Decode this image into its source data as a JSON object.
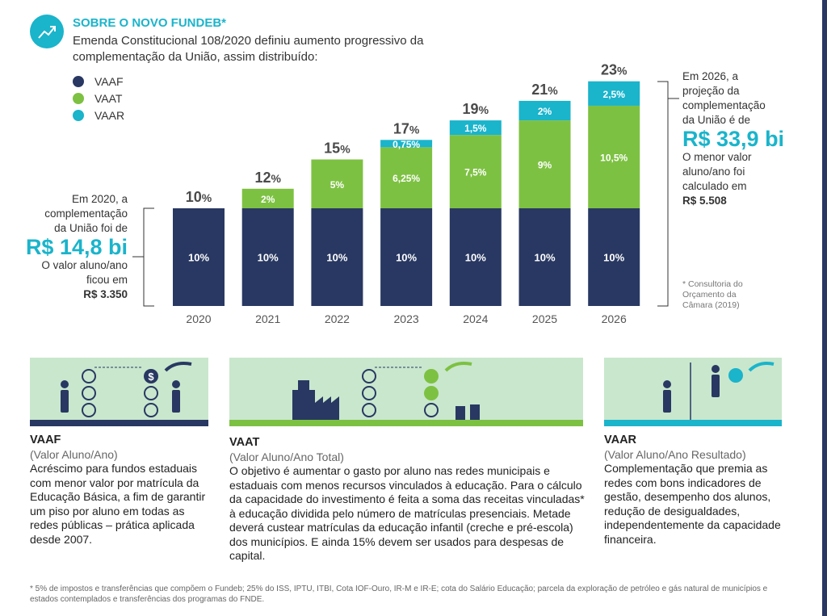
{
  "header": {
    "title": "SOBRE O NOVO FUNDEB*",
    "subtitle": "Emenda Constitucional 108/2020 definiu aumento progressivo da complementação da União, assim distribuído:",
    "icon": "trending-up-icon"
  },
  "colors": {
    "VAAF": "#283862",
    "VAAT": "#7dc142",
    "VAAR": "#1ab4cb"
  },
  "chart_data": {
    "type": "bar",
    "stacked": true,
    "categories": [
      "2020",
      "2021",
      "2022",
      "2023",
      "2024",
      "2025",
      "2026"
    ],
    "series": [
      {
        "name": "VAAF",
        "values": [
          10,
          10,
          10,
          10,
          10,
          10,
          10
        ],
        "labels": [
          "10%",
          "10%",
          "10%",
          "10%",
          "10%",
          "10%",
          "10%"
        ]
      },
      {
        "name": "VAAT",
        "values": [
          0,
          2,
          5,
          6.25,
          7.5,
          9,
          10.5
        ],
        "labels": [
          "",
          "2%",
          "5%",
          "6,25%",
          "7,5%",
          "9%",
          "10,5%"
        ]
      },
      {
        "name": "VAAR",
        "values": [
          0,
          0,
          0,
          0.75,
          1.5,
          2,
          2.5
        ],
        "labels": [
          "",
          "",
          "",
          "0,75%",
          "1,5%",
          "2%",
          "2,5%"
        ]
      }
    ],
    "totals": [
      "10",
      "12",
      "15",
      "17",
      "19",
      "21",
      "23"
    ],
    "total_suffix": "%",
    "legend": "top-left",
    "grid": false
  },
  "left_note": {
    "line1": "Em 2020, a",
    "line2": "complementação",
    "line3": "da União foi de",
    "amount": "R$ 14,8 bi",
    "line4": "O valor aluno/ano",
    "line5": "ficou em",
    "value": "R$ 3.350"
  },
  "right_note": {
    "line1": "Em 2026, a",
    "line2": "projeção da",
    "line3": "complementação",
    "line4": "da União é de",
    "amount": "R$ 33,9 bi",
    "line5": "O menor valor",
    "line6": "aluno/ano foi",
    "line7": "calculado em",
    "value": "R$ 5.508",
    "source": "* Consultoria do Orçamento da Câmara (2019)"
  },
  "sections": [
    {
      "title": "VAAF",
      "subtitle": "(Valor Aluno/Ano)",
      "text": "Acréscimo para fundos estaduais com menor valor por matrícula da Educação Básica, a fim de garantir um piso por aluno em todas as redes públicas – prática aplicada desde 2007."
    },
    {
      "title": "VAAT",
      "subtitle": "(Valor Aluno/Ano Total)",
      "text": "O objetivo é aumentar o gasto por aluno nas redes municipais e estaduais com menos recursos vinculados à educação. Para o cálculo da capacidade do investimento é feita a soma das receitas vinculadas* à educação dividida pelo número de matrículas presenciais. Metade deverá custear matrículas da educação infantil (creche e pré-escola) dos municípios. E ainda 15% devem  ser usados para despesas de capital."
    },
    {
      "title": "VAAR",
      "subtitle": "(Valor Aluno/Ano Resultado)",
      "text": "Complementação que premia as redes com bons indicadores de gestão, desempenho dos alunos, redução de desigualdades, independentemente da capacidade financeira."
    }
  ],
  "footnote": "* 5% de impostos e transferências que compõem o Fundeb; 25% do ISS, IPTU, ITBI, Cota IOF-Ouro, IR-M e IR-E; cota do Salário Educação; parcela da exploração de petróleo e gás natural de municípios e estados contemplados e transferências dos programas do FNDE."
}
